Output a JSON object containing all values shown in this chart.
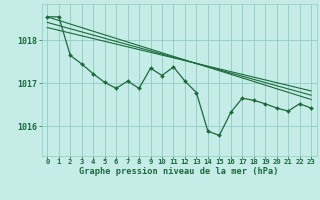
{
  "background_color": "#c5ece6",
  "plot_bg_color": "#c5ece6",
  "grid_color": "#8eccc6",
  "line_color": "#1a6b3a",
  "marker_color": "#1a6b3a",
  "xlabel": "Graphe pression niveau de la mer (hPa)",
  "yticks": [
    1016,
    1017,
    1018
  ],
  "ylim": [
    1015.3,
    1018.85
  ],
  "xlim": [
    -0.5,
    23.5
  ],
  "xticks": [
    0,
    1,
    2,
    3,
    4,
    5,
    6,
    7,
    8,
    9,
    10,
    11,
    12,
    13,
    14,
    15,
    16,
    17,
    18,
    19,
    20,
    21,
    22,
    23
  ],
  "main_series": {
    "x": [
      0,
      1,
      2,
      3,
      4,
      5,
      6,
      7,
      8,
      9,
      10,
      11,
      12,
      13,
      14,
      15,
      16,
      17,
      18,
      19,
      20,
      21,
      22,
      23
    ],
    "y": [
      1018.55,
      1018.55,
      1017.65,
      1017.45,
      1017.22,
      1017.02,
      1016.88,
      1017.05,
      1016.88,
      1017.35,
      1017.18,
      1017.38,
      1017.05,
      1016.78,
      1015.88,
      1015.78,
      1016.32,
      1016.65,
      1016.6,
      1016.52,
      1016.42,
      1016.35,
      1016.52,
      1016.42
    ]
  },
  "trend_lines": [
    {
      "x": [
        0,
        23
      ],
      "y": [
        1018.55,
        1016.62
      ]
    },
    {
      "x": [
        0,
        23
      ],
      "y": [
        1018.42,
        1016.72
      ]
    },
    {
      "x": [
        0,
        23
      ],
      "y": [
        1018.3,
        1016.82
      ]
    }
  ]
}
